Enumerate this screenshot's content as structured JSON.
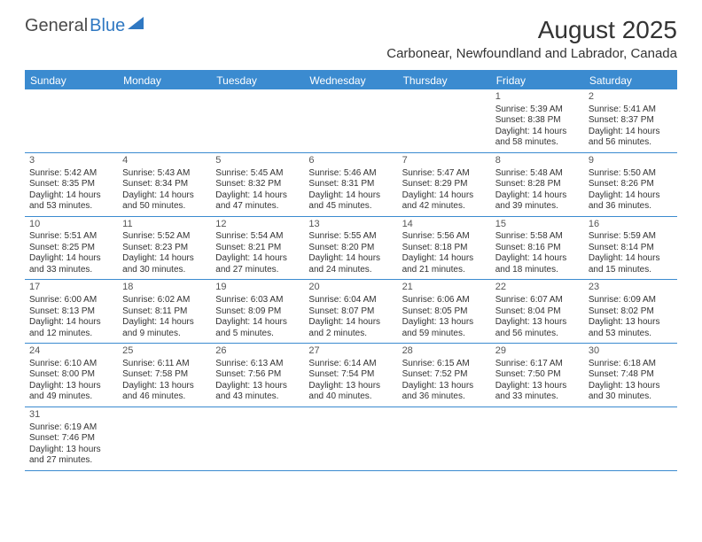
{
  "logo": {
    "text1": "General",
    "text2": "Blue"
  },
  "title": "August 2025",
  "location": "Carbonear, Newfoundland and Labrador, Canada",
  "colors": {
    "header_bg": "#3b8bd0",
    "header_fg": "#ffffff",
    "rule": "#3b8bd0",
    "text": "#333333"
  },
  "day_names": [
    "Sunday",
    "Monday",
    "Tuesday",
    "Wednesday",
    "Thursday",
    "Friday",
    "Saturday"
  ],
  "weeks": [
    [
      null,
      null,
      null,
      null,
      null,
      {
        "n": "1",
        "sr": "Sunrise: 5:39 AM",
        "ss": "Sunset: 8:38 PM",
        "dl": "Daylight: 14 hours and 58 minutes."
      },
      {
        "n": "2",
        "sr": "Sunrise: 5:41 AM",
        "ss": "Sunset: 8:37 PM",
        "dl": "Daylight: 14 hours and 56 minutes."
      }
    ],
    [
      {
        "n": "3",
        "sr": "Sunrise: 5:42 AM",
        "ss": "Sunset: 8:35 PM",
        "dl": "Daylight: 14 hours and 53 minutes."
      },
      {
        "n": "4",
        "sr": "Sunrise: 5:43 AM",
        "ss": "Sunset: 8:34 PM",
        "dl": "Daylight: 14 hours and 50 minutes."
      },
      {
        "n": "5",
        "sr": "Sunrise: 5:45 AM",
        "ss": "Sunset: 8:32 PM",
        "dl": "Daylight: 14 hours and 47 minutes."
      },
      {
        "n": "6",
        "sr": "Sunrise: 5:46 AM",
        "ss": "Sunset: 8:31 PM",
        "dl": "Daylight: 14 hours and 45 minutes."
      },
      {
        "n": "7",
        "sr": "Sunrise: 5:47 AM",
        "ss": "Sunset: 8:29 PM",
        "dl": "Daylight: 14 hours and 42 minutes."
      },
      {
        "n": "8",
        "sr": "Sunrise: 5:48 AM",
        "ss": "Sunset: 8:28 PM",
        "dl": "Daylight: 14 hours and 39 minutes."
      },
      {
        "n": "9",
        "sr": "Sunrise: 5:50 AM",
        "ss": "Sunset: 8:26 PM",
        "dl": "Daylight: 14 hours and 36 minutes."
      }
    ],
    [
      {
        "n": "10",
        "sr": "Sunrise: 5:51 AM",
        "ss": "Sunset: 8:25 PM",
        "dl": "Daylight: 14 hours and 33 minutes."
      },
      {
        "n": "11",
        "sr": "Sunrise: 5:52 AM",
        "ss": "Sunset: 8:23 PM",
        "dl": "Daylight: 14 hours and 30 minutes."
      },
      {
        "n": "12",
        "sr": "Sunrise: 5:54 AM",
        "ss": "Sunset: 8:21 PM",
        "dl": "Daylight: 14 hours and 27 minutes."
      },
      {
        "n": "13",
        "sr": "Sunrise: 5:55 AM",
        "ss": "Sunset: 8:20 PM",
        "dl": "Daylight: 14 hours and 24 minutes."
      },
      {
        "n": "14",
        "sr": "Sunrise: 5:56 AM",
        "ss": "Sunset: 8:18 PM",
        "dl": "Daylight: 14 hours and 21 minutes."
      },
      {
        "n": "15",
        "sr": "Sunrise: 5:58 AM",
        "ss": "Sunset: 8:16 PM",
        "dl": "Daylight: 14 hours and 18 minutes."
      },
      {
        "n": "16",
        "sr": "Sunrise: 5:59 AM",
        "ss": "Sunset: 8:14 PM",
        "dl": "Daylight: 14 hours and 15 minutes."
      }
    ],
    [
      {
        "n": "17",
        "sr": "Sunrise: 6:00 AM",
        "ss": "Sunset: 8:13 PM",
        "dl": "Daylight: 14 hours and 12 minutes."
      },
      {
        "n": "18",
        "sr": "Sunrise: 6:02 AM",
        "ss": "Sunset: 8:11 PM",
        "dl": "Daylight: 14 hours and 9 minutes."
      },
      {
        "n": "19",
        "sr": "Sunrise: 6:03 AM",
        "ss": "Sunset: 8:09 PM",
        "dl": "Daylight: 14 hours and 5 minutes."
      },
      {
        "n": "20",
        "sr": "Sunrise: 6:04 AM",
        "ss": "Sunset: 8:07 PM",
        "dl": "Daylight: 14 hours and 2 minutes."
      },
      {
        "n": "21",
        "sr": "Sunrise: 6:06 AM",
        "ss": "Sunset: 8:05 PM",
        "dl": "Daylight: 13 hours and 59 minutes."
      },
      {
        "n": "22",
        "sr": "Sunrise: 6:07 AM",
        "ss": "Sunset: 8:04 PM",
        "dl": "Daylight: 13 hours and 56 minutes."
      },
      {
        "n": "23",
        "sr": "Sunrise: 6:09 AM",
        "ss": "Sunset: 8:02 PM",
        "dl": "Daylight: 13 hours and 53 minutes."
      }
    ],
    [
      {
        "n": "24",
        "sr": "Sunrise: 6:10 AM",
        "ss": "Sunset: 8:00 PM",
        "dl": "Daylight: 13 hours and 49 minutes."
      },
      {
        "n": "25",
        "sr": "Sunrise: 6:11 AM",
        "ss": "Sunset: 7:58 PM",
        "dl": "Daylight: 13 hours and 46 minutes."
      },
      {
        "n": "26",
        "sr": "Sunrise: 6:13 AM",
        "ss": "Sunset: 7:56 PM",
        "dl": "Daylight: 13 hours and 43 minutes."
      },
      {
        "n": "27",
        "sr": "Sunrise: 6:14 AM",
        "ss": "Sunset: 7:54 PM",
        "dl": "Daylight: 13 hours and 40 minutes."
      },
      {
        "n": "28",
        "sr": "Sunrise: 6:15 AM",
        "ss": "Sunset: 7:52 PM",
        "dl": "Daylight: 13 hours and 36 minutes."
      },
      {
        "n": "29",
        "sr": "Sunrise: 6:17 AM",
        "ss": "Sunset: 7:50 PM",
        "dl": "Daylight: 13 hours and 33 minutes."
      },
      {
        "n": "30",
        "sr": "Sunrise: 6:18 AM",
        "ss": "Sunset: 7:48 PM",
        "dl": "Daylight: 13 hours and 30 minutes."
      }
    ],
    [
      {
        "n": "31",
        "sr": "Sunrise: 6:19 AM",
        "ss": "Sunset: 7:46 PM",
        "dl": "Daylight: 13 hours and 27 minutes."
      },
      null,
      null,
      null,
      null,
      null,
      null
    ]
  ]
}
